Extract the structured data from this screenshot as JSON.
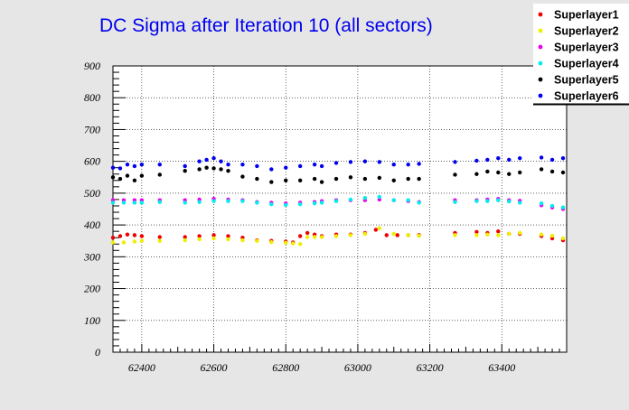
{
  "chart_data": {
    "type": "scatter",
    "title": "DC Sigma after Iteration 10 (all sectors)",
    "xlabel": "",
    "ylabel": "",
    "xlim": [
      62320,
      63580
    ],
    "ylim": [
      0,
      900
    ],
    "grid": true,
    "legend_position": "top-right",
    "x_ticks": [
      "62400",
      "62600",
      "62800",
      "63000",
      "63200",
      "63400"
    ],
    "y_ticks": [
      "0",
      "100",
      "200",
      "300",
      "400",
      "500",
      "600",
      "700",
      "800",
      "900"
    ],
    "x_tick_values": [
      62400,
      62600,
      62800,
      63000,
      63200,
      63400
    ],
    "y_tick_values": [
      0,
      100,
      200,
      300,
      400,
      500,
      600,
      700,
      800,
      900
    ],
    "series": [
      {
        "name": "Superlayer1",
        "color": "#ee0000",
        "x": [
          62320,
          62340,
          62360,
          62380,
          62400,
          62450,
          62520,
          62560,
          62600,
          62640,
          62680,
          62720,
          62760,
          62800,
          62820,
          62840,
          62860,
          62880,
          62900,
          62940,
          62980,
          63020,
          63050,
          63080,
          63110,
          63140,
          63170,
          63270,
          63330,
          63360,
          63390,
          63420,
          63450,
          63510,
          63540,
          63570
        ],
        "y": [
          360,
          365,
          370,
          368,
          365,
          362,
          362,
          365,
          368,
          365,
          360,
          352,
          350,
          348,
          345,
          365,
          375,
          370,
          365,
          370,
          370,
          375,
          385,
          368,
          368,
          368,
          368,
          375,
          378,
          375,
          380,
          372,
          372,
          365,
          358,
          352
        ]
      },
      {
        "name": "Superlayer2",
        "color": "#eeee00",
        "x": [
          62320,
          62350,
          62380,
          62400,
          62450,
          62520,
          62560,
          62600,
          62640,
          62680,
          62720,
          62760,
          62800,
          62820,
          62840,
          62860,
          62880,
          62900,
          62940,
          62980,
          63020,
          63060,
          63100,
          63140,
          63170,
          63270,
          63330,
          63360,
          63390,
          63420,
          63450,
          63510,
          63540,
          63570
        ],
        "y": [
          345,
          345,
          348,
          350,
          350,
          352,
          355,
          358,
          355,
          352,
          350,
          346,
          344,
          342,
          340,
          362,
          362,
          362,
          365,
          368,
          372,
          390,
          372,
          368,
          366,
          368,
          368,
          370,
          368,
          372,
          375,
          370,
          366,
          358
        ]
      },
      {
        "name": "Superlayer3",
        "color": "#ee00ee",
        "x": [
          62320,
          62350,
          62380,
          62400,
          62450,
          62520,
          62560,
          62600,
          62640,
          62680,
          62720,
          62760,
          62800,
          62840,
          62880,
          62900,
          62940,
          62980,
          63020,
          63060,
          63100,
          63140,
          63170,
          63270,
          63330,
          63360,
          63390,
          63420,
          63450,
          63510,
          63540,
          63570
        ],
        "y": [
          478,
          478,
          478,
          478,
          478,
          478,
          480,
          482,
          480,
          478,
          472,
          470,
          468,
          470,
          472,
          475,
          478,
          478,
          478,
          480,
          478,
          475,
          472,
          478,
          478,
          480,
          482,
          478,
          476,
          462,
          455,
          450
        ]
      },
      {
        "name": "Superlayer4",
        "color": "#00eeee",
        "x": [
          62320,
          62350,
          62380,
          62400,
          62450,
          62520,
          62560,
          62600,
          62640,
          62680,
          62720,
          62760,
          62800,
          62840,
          62880,
          62900,
          62940,
          62980,
          63020,
          63060,
          63100,
          63140,
          63170,
          63270,
          63330,
          63360,
          63390,
          63420,
          63450,
          63510,
          63540,
          63570
        ],
        "y": [
          470,
          470,
          470,
          470,
          472,
          470,
          472,
          475,
          475,
          475,
          470,
          465,
          463,
          465,
          468,
          470,
          475,
          480,
          485,
          488,
          478,
          478,
          470,
          472,
          475,
          475,
          478,
          474,
          470,
          468,
          460,
          455
        ]
      },
      {
        "name": "Superlayer5",
        "color": "#000000",
        "x": [
          62320,
          62340,
          62360,
          62380,
          62400,
          62450,
          62520,
          62560,
          62580,
          62600,
          62620,
          62640,
          62680,
          62720,
          62760,
          62800,
          62840,
          62880,
          62900,
          62940,
          62980,
          63020,
          63060,
          63100,
          63140,
          63170,
          63270,
          63330,
          63360,
          63390,
          63420,
          63450,
          63510,
          63540,
          63570
        ],
        "y": [
          550,
          545,
          555,
          540,
          555,
          558,
          570,
          575,
          580,
          578,
          575,
          570,
          552,
          545,
          535,
          540,
          540,
          545,
          535,
          545,
          550,
          545,
          548,
          540,
          545,
          545,
          558,
          560,
          568,
          565,
          560,
          565,
          575,
          568,
          565
        ]
      },
      {
        "name": "Superlayer6",
        "color": "#0000ee",
        "x": [
          62320,
          62340,
          62360,
          62380,
          62400,
          62450,
          62520,
          62560,
          62580,
          62600,
          62620,
          62640,
          62680,
          62720,
          62760,
          62800,
          62840,
          62880,
          62900,
          62940,
          62980,
          63020,
          63060,
          63100,
          63140,
          63170,
          63270,
          63330,
          63360,
          63390,
          63420,
          63450,
          63510,
          63540,
          63570
        ],
        "y": [
          580,
          578,
          590,
          585,
          590,
          590,
          585,
          600,
          605,
          610,
          600,
          590,
          590,
          585,
          575,
          580,
          585,
          590,
          585,
          595,
          598,
          600,
          598,
          590,
          590,
          592,
          598,
          602,
          605,
          610,
          605,
          610,
          612,
          605,
          610
        ]
      }
    ]
  }
}
